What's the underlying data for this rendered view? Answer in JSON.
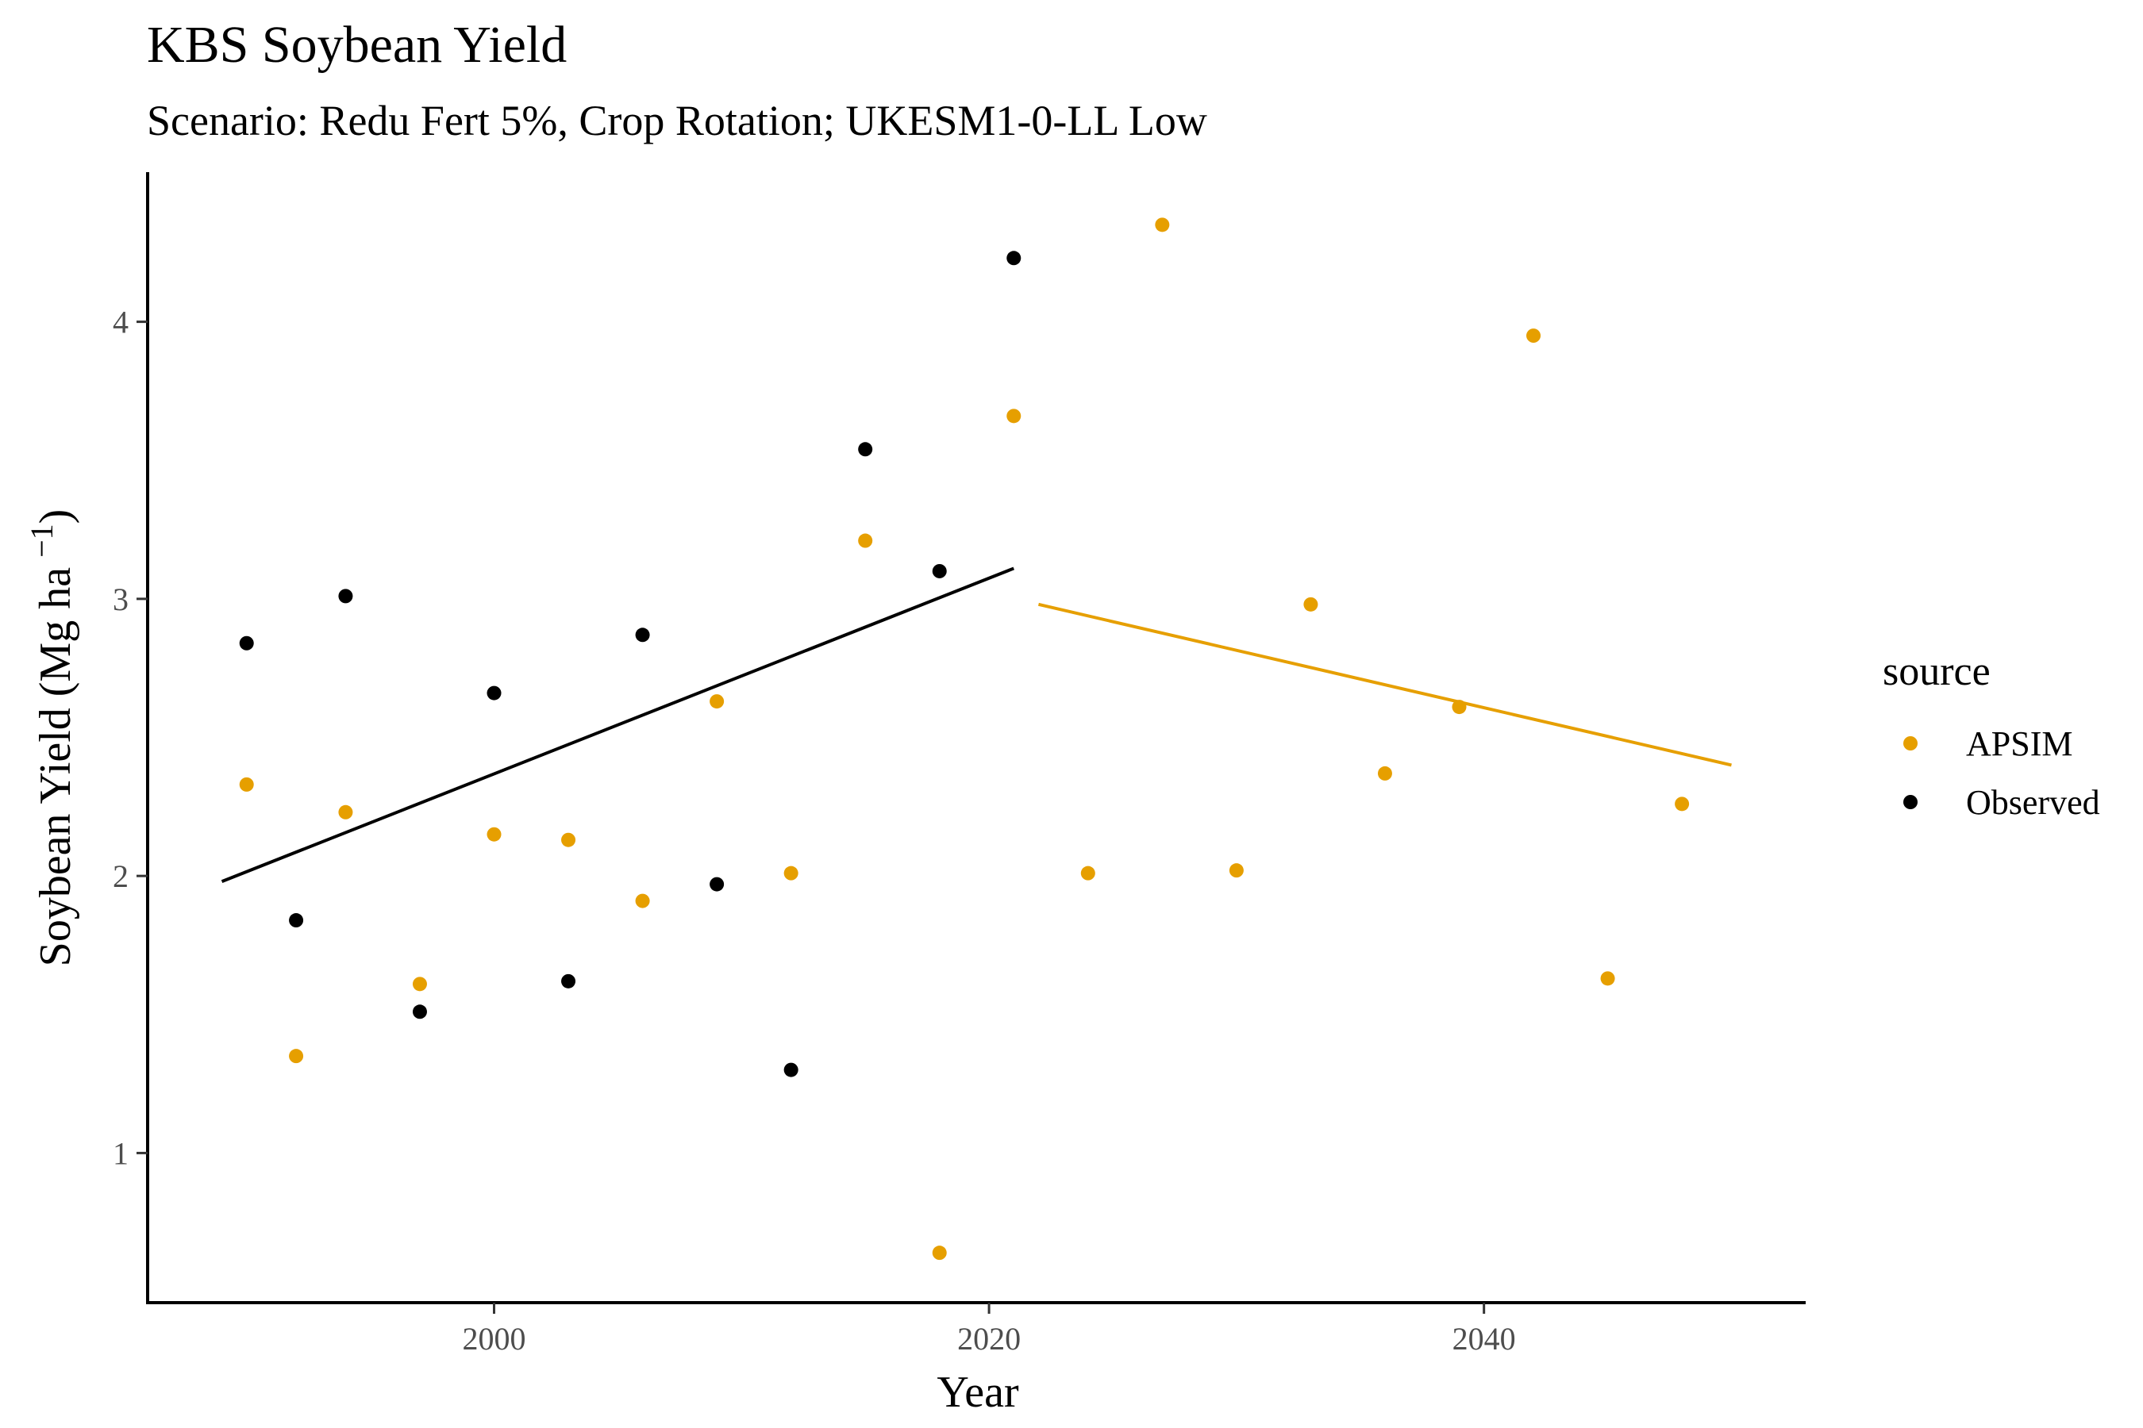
{
  "chart_data": {
    "type": "scatter",
    "title": "KBS Soybean Yield",
    "subtitle": "Scenario: Redu Fert 5%, Crop Rotation; UKESM1-0-LL Low",
    "xlabel": "Year",
    "ylabel": "Soybean Yield (Mg ha",
    "ylabel_sup": "−1",
    "ylabel_close": ")",
    "xlim": [
      1986,
      2053
    ],
    "ylim": [
      0.46,
      4.54
    ],
    "x_ticks": [
      2000,
      2020,
      2040
    ],
    "y_ticks": [
      1,
      2,
      3,
      4
    ],
    "grid": false,
    "legend": {
      "title": "source",
      "position": "right",
      "entries": [
        "APSIM",
        "Observed"
      ]
    },
    "series": [
      {
        "name": "APSIM",
        "color": "#E69F00",
        "x": [
          1990,
          1992,
          1994,
          1997,
          2000,
          2003,
          2006,
          2009,
          2012,
          2015,
          2018,
          2021,
          2024,
          2027,
          2030,
          2033,
          2036,
          2039,
          2042,
          2045,
          2048
        ],
        "y": [
          2.33,
          1.35,
          2.23,
          1.61,
          2.15,
          2.13,
          1.91,
          2.63,
          2.01,
          3.21,
          0.64,
          3.66,
          2.01,
          4.35,
          2.02,
          2.98,
          2.37,
          2.61,
          3.95,
          1.63,
          2.26
        ],
        "trend": {
          "x": [
            2022,
            2050
          ],
          "y": [
            2.98,
            2.4
          ]
        }
      },
      {
        "name": "Observed",
        "color": "#000000",
        "x": [
          1990,
          1992,
          1994,
          1997,
          2000,
          2003,
          2006,
          2009,
          2012,
          2015,
          2018,
          2021
        ],
        "y": [
          2.84,
          1.84,
          3.01,
          1.51,
          2.66,
          1.62,
          2.87,
          1.97,
          1.3,
          3.54,
          3.1,
          4.23
        ],
        "trend": {
          "x": [
            1989,
            2021
          ],
          "y": [
            1.98,
            3.11
          ]
        }
      }
    ]
  }
}
